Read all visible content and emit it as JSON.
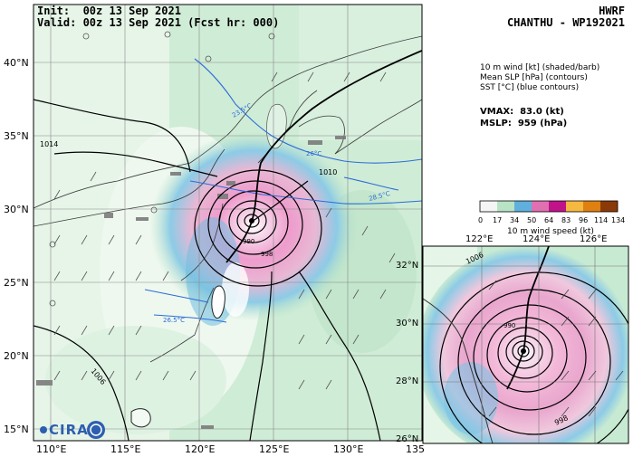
{
  "header": {
    "init_line": "Init:  00z 13 Sep 2021",
    "valid_line": "Valid: 00z 13 Sep 2021 (Fcst hr: 000)",
    "model": "HWRF",
    "storm": "CHANTHU - WP192021"
  },
  "legend_text": {
    "line1": "10 m wind [kt] (shaded/barb)",
    "line2": "Mean SLP [hPa] (contours)",
    "line3": "SST [°C] (blue contours)"
  },
  "stats": {
    "vmax": "VMAX:  83.0 (kt)",
    "mslp": "MSLP:  959 (hPa)"
  },
  "colorbar": {
    "ticks": [
      "0",
      "17",
      "34",
      "50",
      "64",
      "83",
      "96",
      "114",
      "134"
    ],
    "label": "10 m wind speed (kt)",
    "colors": [
      "#f5f5f5",
      "#c8e6c8",
      "#5fb0dc",
      "#e070b0",
      "#c0138a",
      "#f5b840",
      "#e08010",
      "#b84a10",
      "#7a2a05"
    ]
  },
  "main_map": {
    "lon_labels": [
      "110°E",
      "115°E",
      "120°E",
      "125°E",
      "130°E",
      "135"
    ],
    "lat_labels": [
      "40°N",
      "35°N",
      "30°N",
      "25°N",
      "20°N",
      "15°N"
    ],
    "contour_labels": [
      "1014",
      "1010",
      "1006",
      "990",
      "998"
    ],
    "sst_labels": [
      "23.5°C",
      "26°C",
      "28.5°C",
      "26.5°C",
      "23.5°C"
    ]
  },
  "inset_map": {
    "lon_labels": [
      "122°E",
      "124°E",
      "126°E"
    ],
    "lat_labels": [
      "32°N",
      "30°N",
      "28°N",
      "26°N"
    ],
    "contour_labels": [
      "1006",
      "990",
      "998"
    ]
  },
  "logo": {
    "text": "CIRA"
  },
  "storm_center": {
    "lat": 28.9,
    "lon": 123.5
  }
}
